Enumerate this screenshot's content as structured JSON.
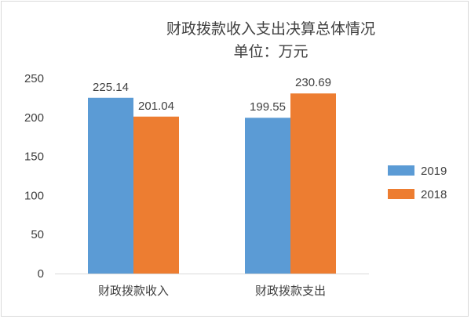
{
  "chart_data": {
    "type": "bar",
    "title": "财政拨款收入支出决算总体情况",
    "subtitle": "单位：万元",
    "categories": [
      "财政拨款收入",
      "财政拨款支出"
    ],
    "series": [
      {
        "name": "2019",
        "values": [
          225.14,
          199.55
        ],
        "color": "#5b9bd5"
      },
      {
        "name": "2018",
        "values": [
          201.04,
          230.69
        ],
        "color": "#ed7d31"
      }
    ],
    "ylim": [
      0,
      250
    ],
    "yticks": [
      "0",
      "50",
      "100",
      "150",
      "200",
      "250"
    ],
    "grid": false,
    "legend_position": "right"
  }
}
